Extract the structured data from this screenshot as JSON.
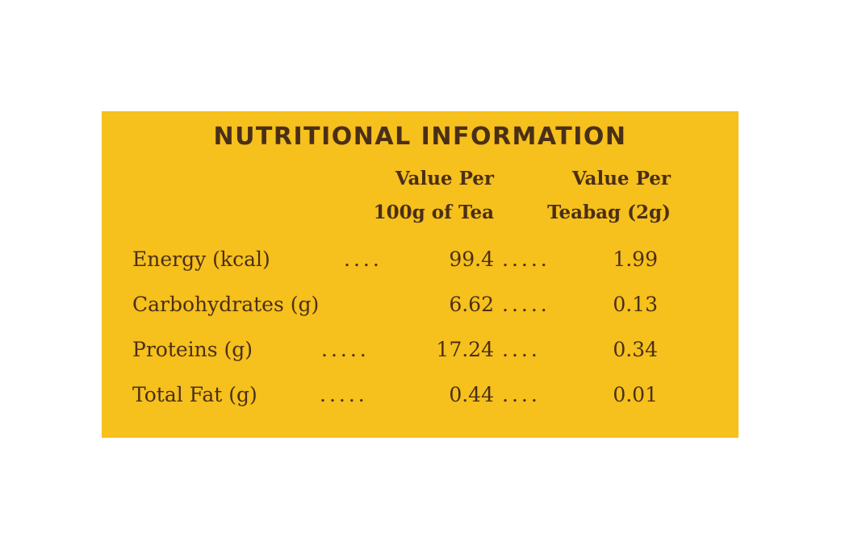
{
  "title": "NUTRITIONAL INFORMATION",
  "columns": {
    "col1_line1": "Value Per",
    "col1_line2": "100g of Tea",
    "col2_line1": "Value Per",
    "col2_line2": "Teabag (2g)"
  },
  "rows": [
    {
      "name": "Energy (kcal)",
      "dots1": "....",
      "v1": "99.4",
      "dots2": ".....",
      "v2": "1.99"
    },
    {
      "name": "Carbohydrates (g)",
      "dots1": "",
      "v1": "6.62",
      "dots2": ".....",
      "v2": "0.13"
    },
    {
      "name": "Proteins (g)",
      "dots1": ".....",
      "v1": "17.24",
      "dots2": "....",
      "v2": "0.34"
    },
    {
      "name": "Total Fat (g)",
      "dots1": ".....",
      "v1": "0.44",
      "dots2": "....",
      "v2": "0.01"
    }
  ],
  "colors": {
    "panel": "#f6c01d",
    "text": "#4a2f17"
  }
}
